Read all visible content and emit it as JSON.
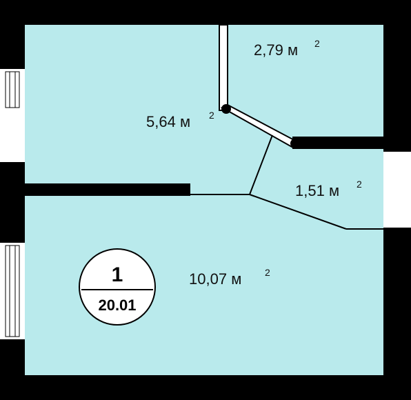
{
  "colors": {
    "room_fill": "#b9eaec",
    "wall": "#000000",
    "background": "#ffffff"
  },
  "apartment": {
    "number": "1",
    "total_area": "20.01"
  },
  "rooms": [
    {
      "id": "room-main",
      "area": "10,07",
      "unit": "м",
      "exp": "2"
    },
    {
      "id": "room-corridor",
      "area": "5,64",
      "unit": "м",
      "exp": "2"
    },
    {
      "id": "room-bath",
      "area": "2,79",
      "unit": "м",
      "exp": "2"
    },
    {
      "id": "room-hall",
      "area": "1,51",
      "unit": "м",
      "exp": "2"
    }
  ]
}
